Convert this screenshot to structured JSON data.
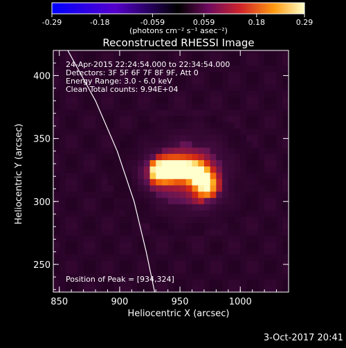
{
  "colorbar": {
    "ticks": [
      "-0.29",
      "-0.18",
      "-0.059",
      "0.059",
      "0.18",
      "0.29"
    ],
    "unit_label": "(photons cm⁻² s⁻¹ asec⁻²)",
    "range": [
      -0.29,
      0.29
    ]
  },
  "chart_data": {
    "type": "heatmap",
    "title": "Reconstructed RHESSI Image",
    "xlabel": "Heliocentric X (arcsec)",
    "ylabel": "Heliocentric Y (arcsec)",
    "xlim": [
      845,
      1040
    ],
    "ylim": [
      228,
      420
    ],
    "xticks": [
      "850",
      "900",
      "950",
      "1000"
    ],
    "yticks": [
      "250",
      "300",
      "350",
      "400"
    ],
    "annotations": [
      "24-Apr-2015 22:24:54.000 to 22:34:54.000",
      "Detectors: 3F 5F 6F 7F 8F 9F, Att 0",
      "Energy Range: 3.0 - 6.0 keV",
      "Clean    Total counts: 9.94E+04"
    ],
    "peak_label": "Position of Peak = [934,324]",
    "peak": [
      934,
      324
    ],
    "limb": [
      [
        857,
        420
      ],
      [
        880,
        380
      ],
      [
        898,
        340
      ],
      [
        912,
        300
      ],
      [
        922,
        260
      ],
      [
        929,
        228
      ]
    ],
    "sources": [
      {
        "x": 934,
        "y": 324,
        "amp": 0.29,
        "sx": 9,
        "sy": 7
      },
      {
        "x": 950,
        "y": 327,
        "amp": 0.21,
        "sx": 9,
        "sy": 6
      },
      {
        "x": 965,
        "y": 322,
        "amp": 0.18,
        "sx": 7,
        "sy": 7
      },
      {
        "x": 972,
        "y": 312,
        "amp": 0.19,
        "sx": 7,
        "sy": 8
      },
      {
        "x": 958,
        "y": 322,
        "amp": 0.1,
        "sx": 22,
        "sy": 20
      }
    ],
    "background": 0.02
  },
  "timestamp": "3-Oct-2017 20:41"
}
